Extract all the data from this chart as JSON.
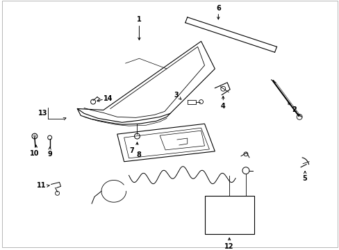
{
  "bg_color": "#ffffff",
  "line_color": "#000000",
  "fig_width": 4.89,
  "fig_height": 3.6,
  "dpi": 100,
  "lw": 0.8
}
